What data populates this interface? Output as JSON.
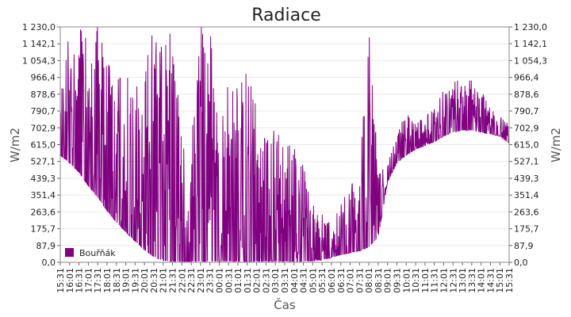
{
  "chart_data": {
    "type": "line",
    "title": "Radiace",
    "xlabel": "Čas",
    "ylabel": "W/m2",
    "ylabel_right": "W/m2",
    "ylim": [
      0,
      1230
    ],
    "yticks": [
      "0,0",
      "87,9",
      "175,7",
      "263,6",
      "351,4",
      "439,3",
      "527,1",
      "615,0",
      "702,9",
      "790,7",
      "878,6",
      "966,4",
      "1 054,3",
      "1 142,1",
      "1 230,0"
    ],
    "ytick_values": [
      0,
      87.9,
      175.7,
      263.6,
      351.4,
      439.3,
      527.1,
      615.0,
      702.9,
      790.7,
      878.6,
      966.4,
      1054.3,
      1142.1,
      1230.0
    ],
    "xticks": [
      "15:31",
      "16:01",
      "16:31",
      "17:01",
      "17:31",
      "18:01",
      "18:31",
      "19:01",
      "19:31",
      "20:01",
      "20:31",
      "21:01",
      "21:31",
      "22:01",
      "22:31",
      "23:01",
      "23:31",
      "00:01",
      "00:31",
      "01:01",
      "01:31",
      "02:01",
      "02:31",
      "03:01",
      "03:31",
      "04:01",
      "04:31",
      "05:01",
      "05:31",
      "06:01",
      "06:31",
      "07:01",
      "07:31",
      "08:01",
      "08:31",
      "09:01",
      "09:31",
      "10:01",
      "10:31",
      "11:01",
      "11:31",
      "12:01",
      "12:31",
      "13:01",
      "13:31",
      "14:01",
      "14:31",
      "15:01",
      "15:31"
    ],
    "grid": true,
    "legend_position": "bottom-left",
    "series": [
      {
        "name": "Bouřňák",
        "color": "#800080",
        "x": [
          "15:31",
          "16:01",
          "16:31",
          "17:01",
          "17:31",
          "18:01",
          "18:31",
          "19:01",
          "19:31",
          "20:01",
          "20:31",
          "21:01",
          "21:31",
          "22:01",
          "22:31",
          "23:01",
          "23:31",
          "00:01",
          "00:31",
          "01:01",
          "01:31",
          "02:01",
          "02:31",
          "03:01",
          "03:31",
          "04:01",
          "04:31",
          "05:01",
          "05:31",
          "06:01",
          "06:31",
          "07:01",
          "07:31",
          "08:01",
          "08:31",
          "09:01",
          "09:31",
          "10:01",
          "10:31",
          "11:01",
          "11:31",
          "12:01",
          "12:31",
          "13:01",
          "13:31",
          "14:01",
          "14:31",
          "15:01",
          "15:31"
        ],
        "values": [
          560,
          520,
          470,
          400,
          340,
          270,
          210,
          160,
          110,
          65,
          30,
          8,
          5,
          5,
          5,
          5,
          5,
          5,
          5,
          5,
          5,
          5,
          5,
          5,
          5,
          5,
          5,
          8,
          12,
          25,
          40,
          50,
          60,
          80,
          130,
          420,
          520,
          560,
          590,
          610,
          630,
          660,
          680,
          690,
          690,
          680,
          670,
          660,
          620
        ],
        "spike_max": [
          900,
          1230,
          1230,
          1150,
          1230,
          1050,
          950,
          980,
          900,
          1000,
          1230,
          1100,
          1230,
          620,
          620,
          1230,
          1230,
          620,
          1000,
          900,
          1000,
          800,
          620,
          700,
          600,
          620,
          500,
          300,
          250,
          200,
          300,
          400,
          450,
          1230,
          500,
          520,
          700,
          780,
          720,
          760,
          800,
          900,
          950,
          950,
          950,
          900,
          800,
          760,
          720
        ]
      }
    ]
  }
}
